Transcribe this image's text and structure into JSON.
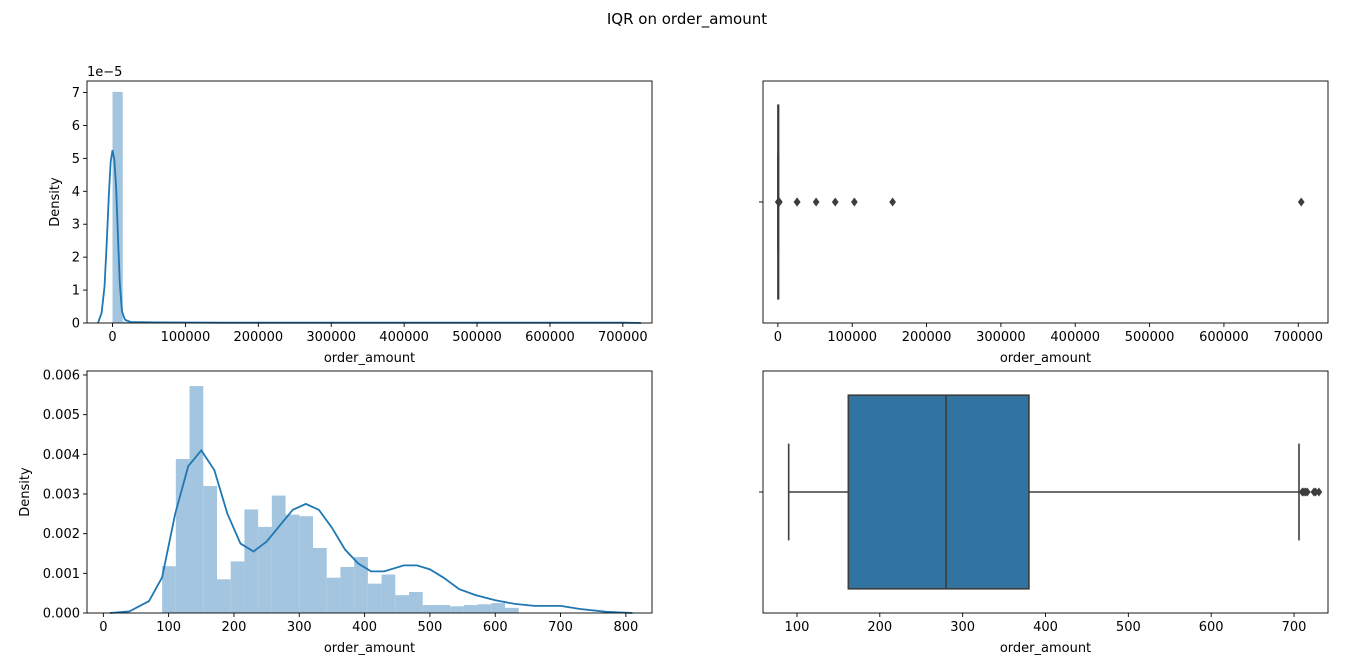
{
  "figure": {
    "suptitle": "IQR on order_amount"
  },
  "colors": {
    "hist_fill": "#a3c5df",
    "kde_line": "#1f77b4",
    "box_fill": "#3274a1",
    "box_line": "#3d3d3d",
    "outlier": "#3d3d3d"
  },
  "chart_data": [
    {
      "id": "hist_full",
      "type": "histogram",
      "xlabel": "order_amount",
      "ylabel": "Density",
      "offset_text": "1e−5",
      "xlim": [
        -35000,
        740000
      ],
      "ylim": [
        0,
        7.35
      ],
      "xticks": [
        0,
        100000,
        200000,
        300000,
        400000,
        500000,
        600000,
        700000
      ],
      "xtick_labels": [
        "0",
        "100000",
        "200000",
        "300000",
        "400000",
        "500000",
        "600000",
        "700000"
      ],
      "yticks": [
        0,
        1,
        2,
        3,
        4,
        5,
        6,
        7
      ],
      "ytick_labels": [
        "0",
        "1",
        "2",
        "3",
        "4",
        "5",
        "6",
        "7"
      ],
      "bins": [
        {
          "x0": 0,
          "x1": 14000,
          "density": 7.02
        },
        {
          "x0": 14000,
          "x1": 28000,
          "density": 0.04
        },
        {
          "x0": 28000,
          "x1": 42000,
          "density": 0.01
        },
        {
          "x0": 42000,
          "x1": 56000,
          "density": 0.01
        },
        {
          "x0": 70000,
          "x1": 84000,
          "density": 0.01
        },
        {
          "x0": 98000,
          "x1": 112000,
          "density": 0.005
        },
        {
          "x0": 154000,
          "x1": 168000,
          "density": 0.005
        },
        {
          "x0": 700000,
          "x1": 714000,
          "density": 0.02
        }
      ],
      "kde": [
        {
          "x": -20000,
          "y": 0.0
        },
        {
          "x": -15000,
          "y": 0.3
        },
        {
          "x": -11000,
          "y": 1.1
        },
        {
          "x": -8000,
          "y": 2.4
        },
        {
          "x": -5000,
          "y": 3.9
        },
        {
          "x": -2500,
          "y": 4.9
        },
        {
          "x": 0,
          "y": 5.25
        },
        {
          "x": 2500,
          "y": 4.95
        },
        {
          "x": 5000,
          "y": 4.1
        },
        {
          "x": 7500,
          "y": 2.6
        },
        {
          "x": 10000,
          "y": 1.2
        },
        {
          "x": 13000,
          "y": 0.35
        },
        {
          "x": 17000,
          "y": 0.1
        },
        {
          "x": 25000,
          "y": 0.03
        },
        {
          "x": 60000,
          "y": 0.02
        },
        {
          "x": 150000,
          "y": 0.01
        },
        {
          "x": 400000,
          "y": 0.01
        },
        {
          "x": 700000,
          "y": 0.01
        },
        {
          "x": 725000,
          "y": 0.0
        }
      ]
    },
    {
      "id": "box_full",
      "type": "boxplot",
      "orientation": "horizontal",
      "xlabel": "order_amount",
      "xlim": [
        -20000,
        740000
      ],
      "xticks": [
        0,
        100000,
        200000,
        300000,
        400000,
        500000,
        600000,
        700000
      ],
      "xtick_labels": [
        "0",
        "100000",
        "200000",
        "300000",
        "400000",
        "500000",
        "600000",
        "700000"
      ],
      "whisker_low": 90,
      "q1": 163,
      "median": 284,
      "q3": 390,
      "whisker_high": 730,
      "outliers": [
        730,
        735,
        760,
        800,
        850,
        900,
        950,
        1000,
        1086,
        1760,
        2000,
        25725,
        26000,
        51450,
        77175,
        102900,
        154350,
        704000
      ]
    },
    {
      "id": "hist_iqr",
      "type": "histogram",
      "xlabel": "order_amount",
      "ylabel": "Density",
      "xlim": [
        -25,
        840
      ],
      "ylim": [
        0,
        0.0061
      ],
      "xticks": [
        0,
        100,
        200,
        300,
        400,
        500,
        600,
        700,
        800
      ],
      "xtick_labels": [
        "0",
        "100",
        "200",
        "300",
        "400",
        "500",
        "600",
        "700",
        "800"
      ],
      "yticks": [
        0,
        0.001,
        0.002,
        0.003,
        0.004,
        0.005,
        0.006
      ],
      "ytick_labels": [
        "0.000",
        "0.001",
        "0.002",
        "0.003",
        "0.004",
        "0.005",
        "0.006"
      ],
      "bins": [
        {
          "x0": 90,
          "x1": 111,
          "density": 0.00118
        },
        {
          "x0": 111,
          "x1": 132,
          "density": 0.00388
        },
        {
          "x0": 132,
          "x1": 153,
          "density": 0.00572
        },
        {
          "x0": 153,
          "x1": 174,
          "density": 0.0032
        },
        {
          "x0": 174,
          "x1": 195,
          "density": 0.00085
        },
        {
          "x0": 195,
          "x1": 216,
          "density": 0.0013
        },
        {
          "x0": 216,
          "x1": 237,
          "density": 0.00261
        },
        {
          "x0": 237,
          "x1": 258,
          "density": 0.00217
        },
        {
          "x0": 258,
          "x1": 279,
          "density": 0.00296
        },
        {
          "x0": 279,
          "x1": 300,
          "density": 0.00248
        },
        {
          "x0": 300,
          "x1": 321,
          "density": 0.00244
        },
        {
          "x0": 321,
          "x1": 342,
          "density": 0.00164
        },
        {
          "x0": 342,
          "x1": 363,
          "density": 0.00089
        },
        {
          "x0": 363,
          "x1": 384,
          "density": 0.00116
        },
        {
          "x0": 384,
          "x1": 405,
          "density": 0.00141
        },
        {
          "x0": 405,
          "x1": 426,
          "density": 0.00074
        },
        {
          "x0": 426,
          "x1": 447,
          "density": 0.00097
        },
        {
          "x0": 447,
          "x1": 468,
          "density": 0.00045
        },
        {
          "x0": 468,
          "x1": 489,
          "density": 0.00053
        },
        {
          "x0": 489,
          "x1": 510,
          "density": 0.0002
        },
        {
          "x0": 510,
          "x1": 531,
          "density": 0.0002
        },
        {
          "x0": 531,
          "x1": 552,
          "density": 0.00017
        },
        {
          "x0": 552,
          "x1": 573,
          "density": 0.0002
        },
        {
          "x0": 573,
          "x1": 594,
          "density": 0.00022
        },
        {
          "x0": 594,
          "x1": 615,
          "density": 0.00025
        },
        {
          "x0": 615,
          "x1": 636,
          "density": 0.00013
        }
      ],
      "kde": [
        {
          "x": 10,
          "y": 0.0
        },
        {
          "x": 40,
          "y": 4e-05
        },
        {
          "x": 70,
          "y": 0.0003
        },
        {
          "x": 90,
          "y": 0.0009
        },
        {
          "x": 110,
          "y": 0.0025
        },
        {
          "x": 130,
          "y": 0.0037
        },
        {
          "x": 150,
          "y": 0.0041
        },
        {
          "x": 170,
          "y": 0.0036
        },
        {
          "x": 190,
          "y": 0.0025
        },
        {
          "x": 210,
          "y": 0.00175
        },
        {
          "x": 230,
          "y": 0.00155
        },
        {
          "x": 250,
          "y": 0.0018
        },
        {
          "x": 270,
          "y": 0.0022
        },
        {
          "x": 290,
          "y": 0.0026
        },
        {
          "x": 310,
          "y": 0.00275
        },
        {
          "x": 330,
          "y": 0.0026
        },
        {
          "x": 350,
          "y": 0.00215
        },
        {
          "x": 370,
          "y": 0.0016
        },
        {
          "x": 390,
          "y": 0.00125
        },
        {
          "x": 410,
          "y": 0.00105
        },
        {
          "x": 430,
          "y": 0.00105
        },
        {
          "x": 460,
          "y": 0.0012
        },
        {
          "x": 480,
          "y": 0.0012
        },
        {
          "x": 500,
          "y": 0.0011
        },
        {
          "x": 520,
          "y": 0.0009
        },
        {
          "x": 545,
          "y": 0.0006
        },
        {
          "x": 570,
          "y": 0.00045
        },
        {
          "x": 600,
          "y": 0.00032
        },
        {
          "x": 630,
          "y": 0.00023
        },
        {
          "x": 660,
          "y": 0.00018
        },
        {
          "x": 700,
          "y": 0.00018
        },
        {
          "x": 730,
          "y": 0.0001
        },
        {
          "x": 770,
          "y": 3e-05
        },
        {
          "x": 810,
          "y": 0.0
        }
      ]
    },
    {
      "id": "box_iqr",
      "type": "boxplot",
      "orientation": "horizontal",
      "xlabel": "order_amount",
      "xlim": [
        59,
        741
      ],
      "xticks": [
        100,
        200,
        300,
        400,
        500,
        600,
        700
      ],
      "xtick_labels": [
        "100",
        "200",
        "300",
        "400",
        "500",
        "600",
        "700"
      ],
      "whisker_low": 90,
      "q1": 162,
      "median": 280,
      "q3": 380,
      "whisker_high": 706,
      "outliers": [
        710,
        712,
        714,
        716,
        724,
        726,
        730
      ]
    }
  ]
}
